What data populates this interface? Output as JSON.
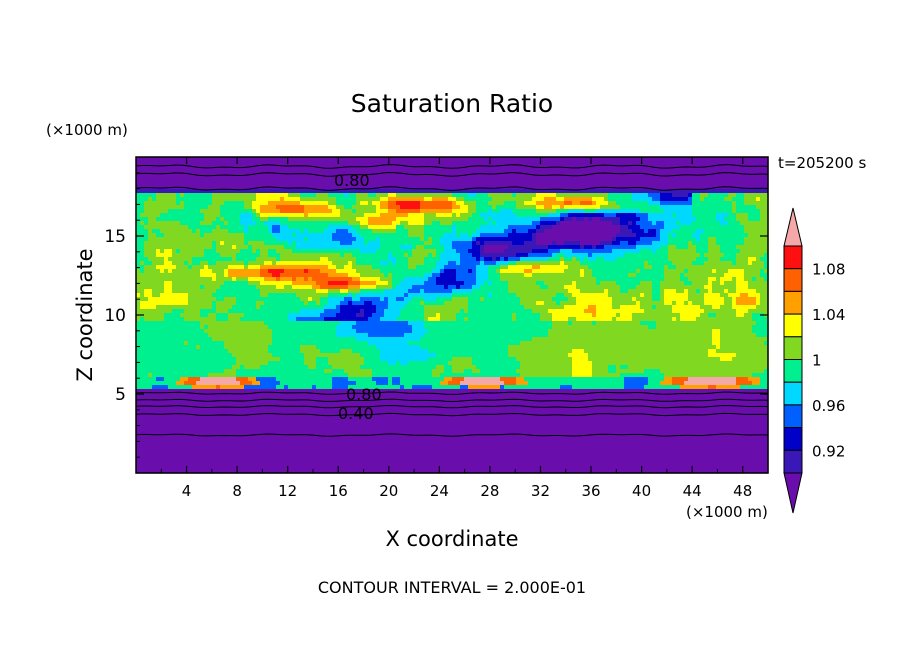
{
  "chart_data": {
    "type": "heatmap",
    "title": "Saturation Ratio",
    "xlabel": "X coordinate",
    "ylabel": "Z coordinate",
    "x_unit": "(×1000 m)",
    "y_unit": "(×1000 m)",
    "time_label": "t=205200 s",
    "footer": "CONTOUR INTERVAL = 2.000E-01",
    "xlim": [
      0,
      50
    ],
    "ylim": [
      0,
      20
    ],
    "x_ticks": [
      "4",
      "8",
      "12",
      "16",
      "20",
      "24",
      "28",
      "32",
      "36",
      "40",
      "44",
      "48"
    ],
    "y_ticks": [
      "5",
      "10",
      "15"
    ],
    "contour_labels": [
      "0.80",
      "0.80",
      "0.40"
    ],
    "colorbar": {
      "tick_labels": [
        "0.92",
        "0.96",
        "1",
        "1.04",
        "1.08"
      ],
      "levels": [
        {
          "upper": 0.9,
          "color": "#6a0dad"
        },
        {
          "upper": 0.92,
          "color": "#3a18b8"
        },
        {
          "upper": 0.94,
          "color": "#0000c8"
        },
        {
          "upper": 0.96,
          "color": "#0060ff"
        },
        {
          "upper": 0.98,
          "color": "#00d8ff"
        },
        {
          "upper": 1.0,
          "color": "#00f090"
        },
        {
          "upper": 1.02,
          "color": "#80d820"
        },
        {
          "upper": 1.04,
          "color": "#ffff00"
        },
        {
          "upper": 1.06,
          "color": "#ffa000"
        },
        {
          "upper": 1.08,
          "color": "#ff6000"
        },
        {
          "upper": 1.1,
          "color": "#ff1010"
        },
        {
          "upper": null,
          "color": "#f4a8a8"
        }
      ]
    }
  }
}
